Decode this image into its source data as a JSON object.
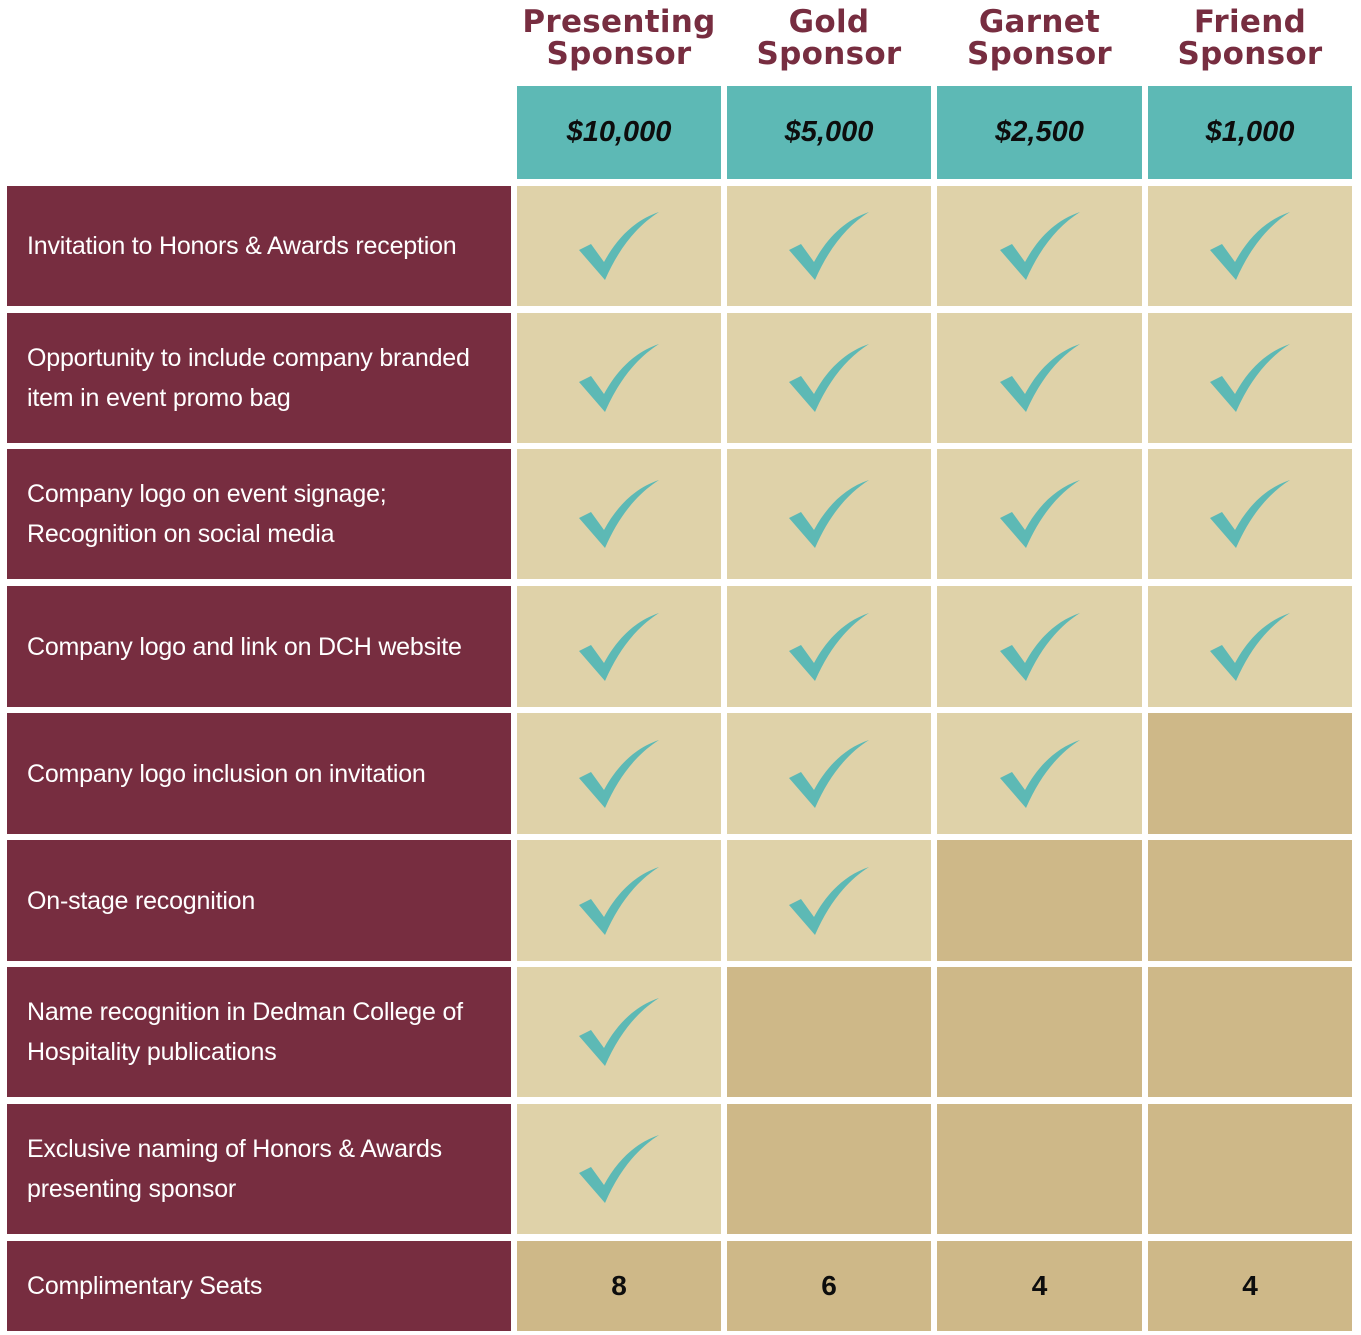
{
  "tiers": [
    {
      "name": "Presenting\nSponsor",
      "price": "$10,000"
    },
    {
      "name": "Gold\nSponsor",
      "price": "$5,000"
    },
    {
      "name": "Garnet\nSponsor",
      "price": "$2,500"
    },
    {
      "name": "Friend\nSponsor",
      "price": "$1,000"
    }
  ],
  "benefits": [
    {
      "label": "Invitation to Honors & Awards reception",
      "included": [
        true,
        true,
        true,
        true
      ]
    },
    {
      "label": "Opportunity to include company branded\nitem in event promo bag",
      "included": [
        true,
        true,
        true,
        true
      ]
    },
    {
      "label": "Company logo on event signage;\nRecognition on social media",
      "included": [
        true,
        true,
        true,
        true
      ]
    },
    {
      "label": "Company logo and link on DCH website",
      "included": [
        true,
        true,
        true,
        true
      ]
    },
    {
      "label": "Company logo inclusion on invitation",
      "included": [
        true,
        true,
        true,
        false
      ]
    },
    {
      "label": "On-stage recognition",
      "included": [
        true,
        true,
        false,
        false
      ]
    },
    {
      "label": "Name recognition in Dedman College of\nHospitality publications",
      "included": [
        true,
        false,
        false,
        false
      ]
    },
    {
      "label": "Exclusive naming of Honors & Awards\npresenting sponsor",
      "included": [
        true,
        false,
        false,
        false
      ]
    }
  ],
  "seats": {
    "label": "Complimentary Seats",
    "values": [
      "8",
      "6",
      "4",
      "4"
    ]
  },
  "icons": {
    "check": "checkmark-icon"
  },
  "colors": {
    "garnet": "#772d40",
    "teal": "#5db9b5",
    "gold_light": "#dfd2a9",
    "gold_dark": "#ceb888"
  }
}
